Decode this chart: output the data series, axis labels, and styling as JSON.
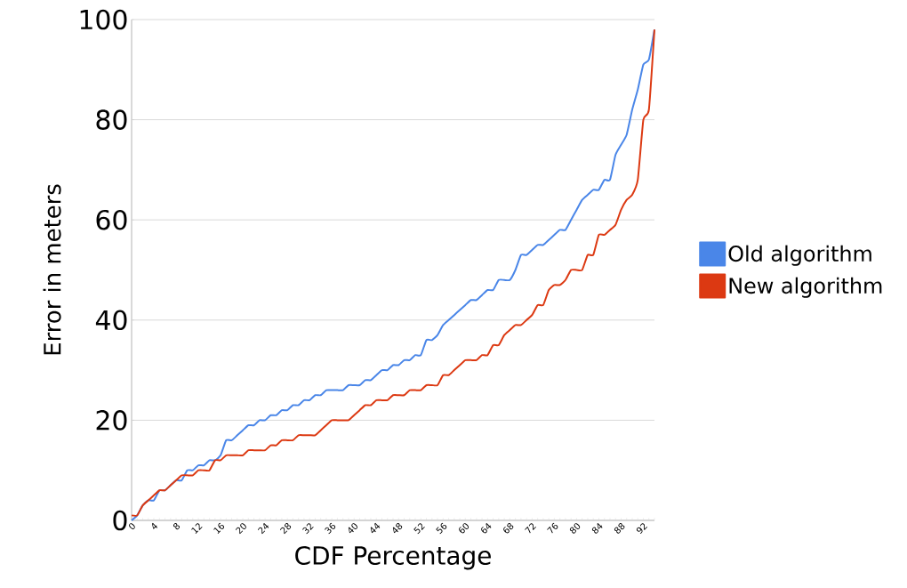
{
  "chart_data": {
    "type": "line",
    "xlabel": "CDF Percentage",
    "ylabel": "Error in meters",
    "categories": [
      "0",
      null,
      null,
      null,
      "4",
      null,
      null,
      null,
      "8",
      null,
      null,
      null,
      "12",
      null,
      null,
      null,
      "16",
      null,
      null,
      null,
      "20",
      null,
      null,
      null,
      "24",
      null,
      null,
      null,
      "28",
      null,
      null,
      null,
      "32",
      null,
      null,
      null,
      "36",
      null,
      null,
      null,
      "40",
      null,
      null,
      null,
      "44",
      null,
      null,
      null,
      "48",
      null,
      null,
      null,
      "52",
      null,
      null,
      null,
      "56",
      null,
      null,
      null,
      "60",
      null,
      null,
      null,
      "64",
      null,
      null,
      null,
      "68",
      null,
      null,
      null,
      "72",
      null,
      null,
      null,
      "76",
      null,
      null,
      null,
      "80",
      null,
      null,
      null,
      "84",
      null,
      null,
      null,
      "88",
      null,
      null,
      null,
      "92",
      null,
      null
    ],
    "series": [
      {
        "name": "Old algorithm",
        "color": "#4a86e8",
        "values": [
          0,
          1,
          3,
          4,
          4,
          6,
          6,
          7,
          8,
          8,
          10,
          10,
          11,
          11,
          12,
          12,
          13,
          16,
          16,
          17,
          18,
          19,
          19,
          20,
          20,
          21,
          21,
          22,
          22,
          23,
          23,
          24,
          24,
          25,
          25,
          26,
          26,
          26,
          26,
          27,
          27,
          27,
          28,
          28,
          29,
          30,
          30,
          31,
          31,
          32,
          32,
          33,
          33,
          36,
          36,
          37,
          39,
          40,
          41,
          42,
          43,
          44,
          44,
          45,
          46,
          46,
          48,
          48,
          48,
          50,
          53,
          53,
          54,
          55,
          55,
          56,
          57,
          58,
          58,
          60,
          62,
          64,
          65,
          66,
          66,
          68,
          68,
          73,
          75,
          77,
          82,
          86,
          91,
          92,
          98
        ]
      },
      {
        "name": "New algorithm",
        "color": "#dc3912",
        "values": [
          1,
          1,
          3,
          4,
          5,
          6,
          6,
          7,
          8,
          9,
          9,
          9,
          10,
          10,
          10,
          12,
          12,
          13,
          13,
          13,
          13,
          14,
          14,
          14,
          14,
          15,
          15,
          16,
          16,
          16,
          17,
          17,
          17,
          17,
          18,
          19,
          20,
          20,
          20,
          20,
          21,
          22,
          23,
          23,
          24,
          24,
          24,
          25,
          25,
          25,
          26,
          26,
          26,
          27,
          27,
          27,
          29,
          29,
          30,
          31,
          32,
          32,
          32,
          33,
          33,
          35,
          35,
          37,
          38,
          39,
          39,
          40,
          41,
          43,
          43,
          46,
          47,
          47,
          48,
          50,
          50,
          50,
          53,
          53,
          57,
          57,
          58,
          59,
          62,
          64,
          65,
          68,
          80,
          82,
          98
        ]
      }
    ],
    "ylim": [
      0,
      100
    ],
    "yticks": [
      0,
      20,
      40,
      60,
      80,
      100
    ],
    "grid": "y",
    "legend": "right"
  }
}
